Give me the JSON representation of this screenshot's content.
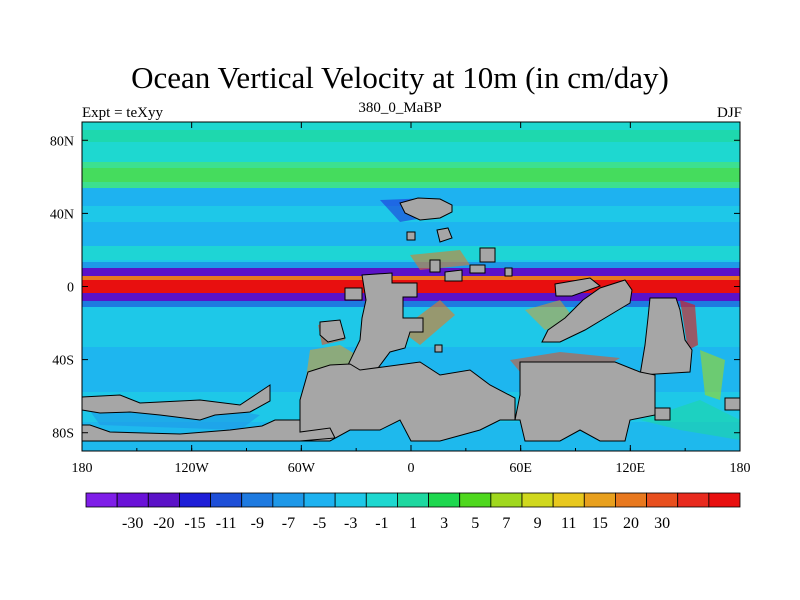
{
  "title": "Ocean Vertical Velocity at 10m (in cm/day)",
  "left_string": "Expt = teXyy",
  "center_string": "380_0_MaBP",
  "right_string": "DJF",
  "map": {
    "land_color": "#a6a6a6",
    "lon_ticks": [
      "180",
      "120W",
      "60W",
      "0",
      "60E",
      "120E",
      "180"
    ],
    "lat_ticks": [
      "80N",
      "40N",
      "0",
      "40S",
      "80S"
    ]
  },
  "colorbar": {
    "colors": [
      "#7f1ee8",
      "#6a12d8",
      "#5b12c8",
      "#1e1ed8",
      "#1e4fd8",
      "#1e7ae0",
      "#1e98e8",
      "#1eb2f0",
      "#1ec8e8",
      "#1ed8d0",
      "#1ed8a0",
      "#1ed84f",
      "#4fd81e",
      "#a0d81e",
      "#d0d81e",
      "#e8c81e",
      "#e8a01e",
      "#e8781e",
      "#e84f1e",
      "#e82a1e",
      "#e80f0f"
    ],
    "labels": [
      "-30",
      "-20",
      "-15",
      "-11",
      "-9",
      "-7",
      "-5",
      "-3",
      "-1",
      "1",
      "3",
      "5",
      "7",
      "9",
      "11",
      "15",
      "20",
      "30"
    ]
  }
}
